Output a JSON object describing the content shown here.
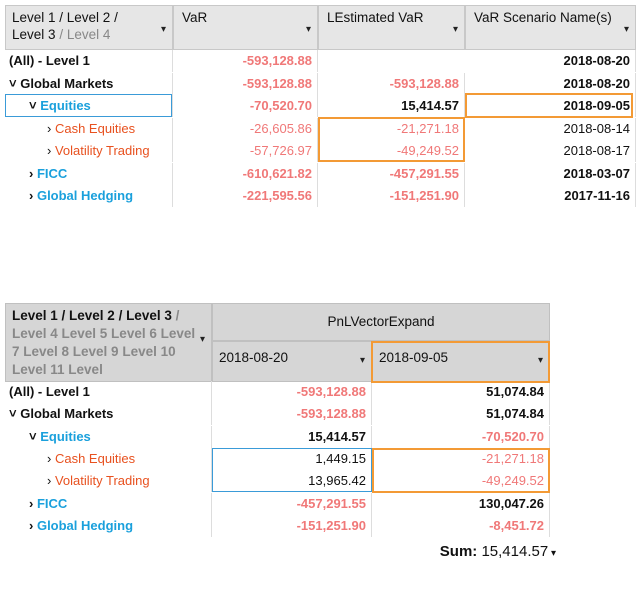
{
  "table1": {
    "header": {
      "first": [
        "Level 1 / Level 2 /",
        "Level 3",
        "/ Level 4"
      ],
      "columns": [
        "VaR",
        "LEstimated VaR",
        "VaR Scenario Name(s)"
      ]
    },
    "rows": [
      [
        "(All) - Level 1",
        "-593,128.88",
        null,
        "2018-08-20"
      ],
      [
        "Global Markets",
        "-593,128.88",
        "-593,128.88",
        "2018-08-20"
      ],
      [
        "Equities",
        "-70,520.70",
        "15,414.57",
        "2018-09-05"
      ],
      [
        "Cash Equities",
        "-26,605.86",
        "-21,271.18",
        "2018-08-14"
      ],
      [
        "Volatility Trading",
        "-57,726.97",
        "-49,249.52",
        "2018-08-17"
      ],
      [
        "FICC",
        "-610,621.82",
        "-457,291.55",
        "2018-03-07"
      ],
      [
        "Global Hedging",
        "-221,595.56",
        "-151,251.90",
        "2017-11-16"
      ]
    ]
  },
  "table2": {
    "header": {
      "first": [
        "Level 1 / Level 2 / Level 3",
        "/ Level 4 Level 5 Level 6 Level 7 Level 8 Level 9 Level 10 Level 11 Level"
      ],
      "group": "PnLVectorExpand",
      "columns": [
        "2018-08-20",
        "2018-09-05"
      ]
    },
    "rows": [
      [
        "(All) - Level 1",
        "-593,128.88",
        "51,074.84"
      ],
      [
        "Global Markets",
        "-593,128.88",
        "51,074.84"
      ],
      [
        "Equities",
        "15,414.57",
        "-70,520.70"
      ],
      [
        "Cash Equities",
        "1,449.15",
        "-21,271.18"
      ],
      [
        "Volatility Trading",
        "13,965.42",
        "-49,249.52"
      ],
      [
        "FICC",
        "-457,291.55",
        "130,047.26"
      ],
      [
        "Global Hedging",
        "-151,251.90",
        "-8,451.72"
      ]
    ],
    "footer": {
      "label": "Sum:",
      "value": "15,414.57"
    }
  }
}
